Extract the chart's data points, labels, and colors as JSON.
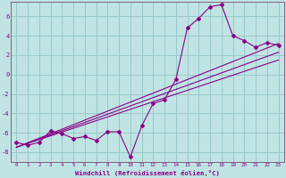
{
  "xlabel": "Windchill (Refroidissement éolien,°C)",
  "background_color": "#c0e4e4",
  "grid_color": "#98c8c8",
  "line_color": "#880088",
  "spine_color": "#806080",
  "xlim": [
    -0.5,
    23.5
  ],
  "ylim": [
    -9.0,
    7.5
  ],
  "xticks": [
    0,
    1,
    2,
    3,
    4,
    5,
    6,
    7,
    8,
    9,
    10,
    11,
    12,
    13,
    14,
    15,
    16,
    17,
    18,
    19,
    20,
    21,
    22,
    23
  ],
  "yticks": [
    -8,
    -6,
    -4,
    -2,
    0,
    2,
    4,
    6
  ],
  "line1_x": [
    0,
    1,
    2,
    3,
    4,
    5,
    6,
    7,
    8,
    9,
    10,
    11,
    12,
    13,
    14,
    15,
    16,
    17,
    18,
    19,
    20,
    21,
    22,
    23
  ],
  "line1_y": [
    -7.0,
    -7.3,
    -7.0,
    -5.8,
    -6.1,
    -6.6,
    -6.4,
    -6.8,
    -5.9,
    -5.9,
    -8.5,
    -5.3,
    -3.0,
    -2.6,
    -0.5,
    4.8,
    5.8,
    7.0,
    7.2,
    4.0,
    3.5,
    2.8,
    3.3,
    3.0
  ],
  "line2_x": [
    0,
    23
  ],
  "line2_y": [
    -7.5,
    3.2
  ],
  "line3_x": [
    0,
    23
  ],
  "line3_y": [
    -7.5,
    1.5
  ],
  "line4_x": [
    0,
    23
  ],
  "line4_y": [
    -7.5,
    2.3
  ]
}
